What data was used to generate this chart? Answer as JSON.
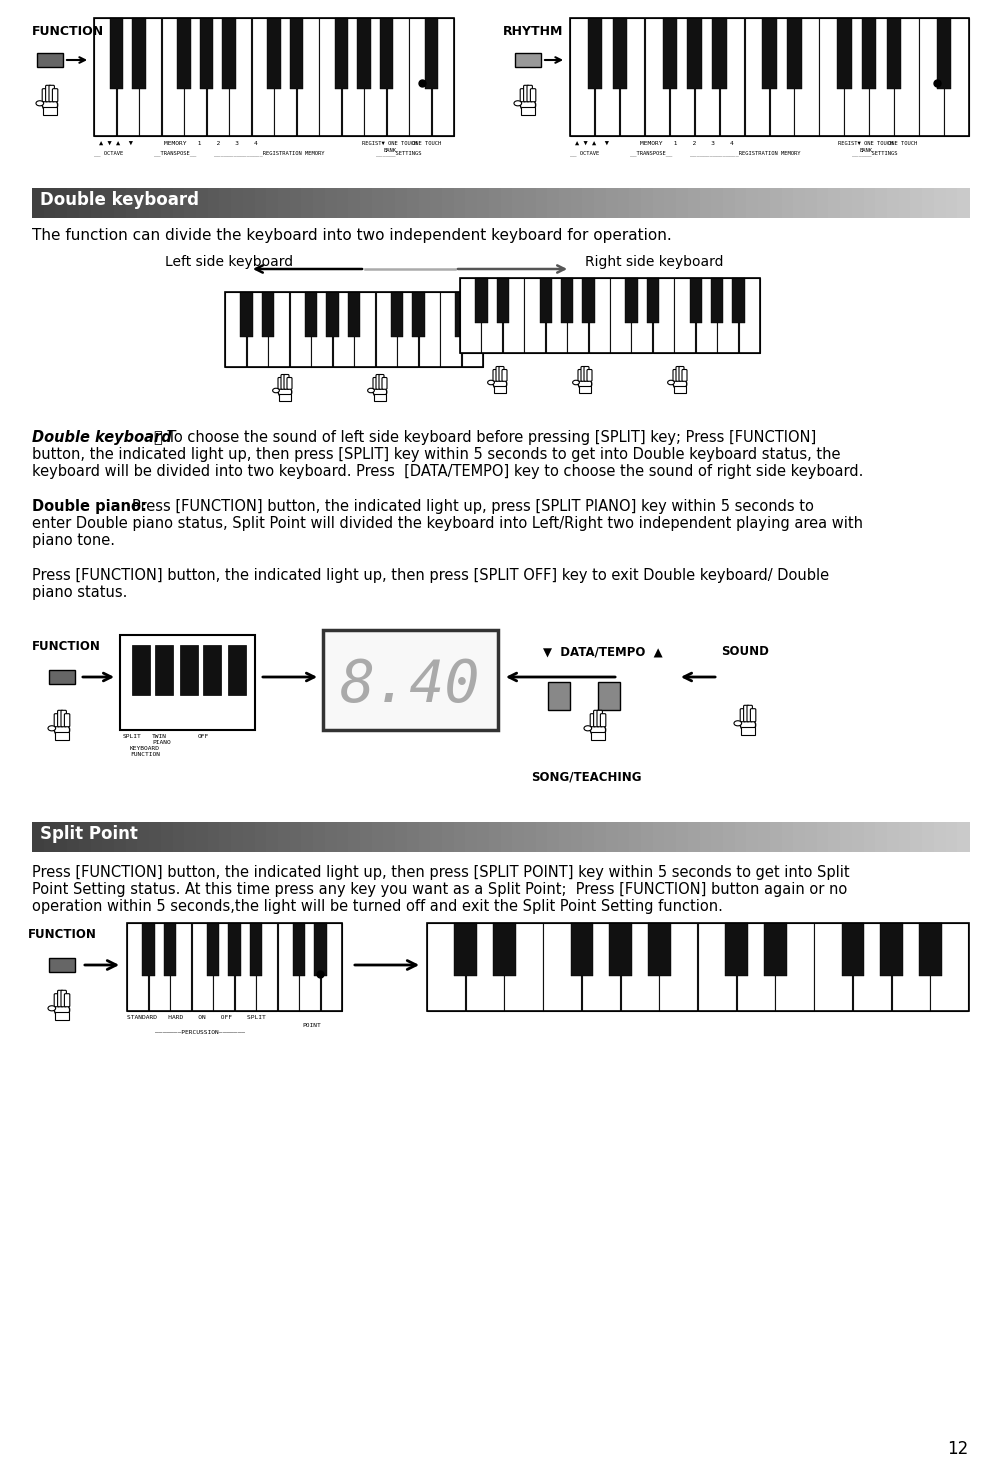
{
  "page_number": "12",
  "bg_color": "#ffffff",
  "section1_header": "Double keyboard",
  "section2_header": "Split Point",
  "section1_intro": "The function can divide the keyboard into two independent keyboard for operation.",
  "section1_left_label": "Left side keyboard",
  "section1_right_label": "Right side keyboard",
  "dk_bold": "Double keyboard",
  "dk_colon": "：",
  "dk_rest1": "To choose the sound of left side keyboard before pressing [SPLIT] key; Press [FUNCTION]",
  "dk_rest2": "button, the indicated light up, then press [SPLIT] key within 5 seconds to get into Double keyboard status, the",
  "dk_rest3": "keyboard will be divided into two keyboard. Press  [DATA/TEMPO] key to choose the sound of right side keyboard.",
  "dp_bold": "Double piano:",
  "dp_rest1": "Press [FUNCTION] button, the indicated light up, press [SPLIT PIANO] key within 5 seconds to",
  "dp_rest2": "enter Double piano status, Split Point will divided the keyboard into Left/Right two independent playing area with",
  "dp_rest3": "piano tone.",
  "ex_line1": "Press [FUNCTION] button, the indicated light up, then press [SPLIT OFF] key to exit Double keyboard/ Double",
  "ex_line2": "piano status.",
  "sp_line1": "Press [FUNCTION] button, the indicated light up, then press [SPLIT POINT] key within 5 seconds to get into Split",
  "sp_line2": "Point Setting status. At this time press any key you want as a Split Point;  Press [FUNCTION] button again or no",
  "sp_line3": "operation within 5 seconds,the light will be turned off and exit the Split Point Setting function.",
  "func_label": "FUNCTION",
  "rhythm_label": "RHYTHM",
  "data_tempo_label": "▼  DATA/TEMPO  ▲",
  "sound_label": "SOUND",
  "song_teaching_label": "SONG/TEACHING",
  "split_label": "SPLIT",
  "twin_piano_label": "TWIN\nPIANO",
  "off_label": "OFF",
  "kb_func_label": "KEYBOARD\nFUNCTION",
  "std_label": "STANDARD",
  "hard_label": "HARD",
  "on_label": "ON",
  "off2_label": "OFF",
  "sp_label": "SPLIT\nPOINT",
  "perc_label": "PERCUSSION",
  "octave_label": "__ OCTAVE",
  "transpose_label": "__TRANSPOSE__",
  "reg_mem_label": "_______________REGISTRATION MEMORY",
  "settings_label": "______SETTINGS",
  "mem_label": "MEMORY   1    2    3    4",
  "regist_label": "REGIST▼ ONE TOUCH",
  "bank_label": "BANK"
}
